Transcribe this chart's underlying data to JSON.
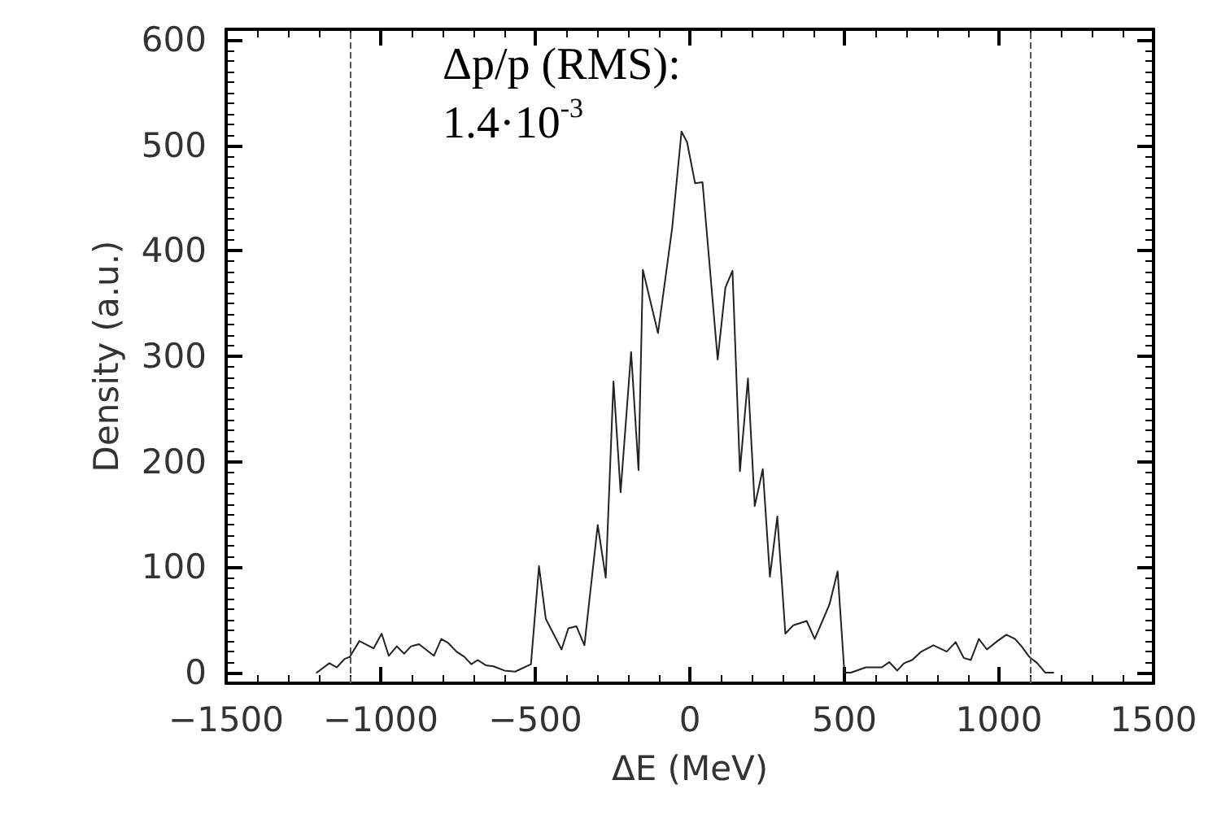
{
  "chart_data": {
    "type": "line",
    "xlabel": "ΔE (MeV)",
    "ylabel": "Density (a.u.)",
    "annotations": [
      "Δp/p (RMS):\n1.4·10$^{-3}$"
    ],
    "xlim": [
      -1500,
      1500
    ],
    "xticks": [
      -1500,
      -1000,
      -500,
      0,
      500,
      1000,
      1500
    ],
    "ylim": [
      -10,
      610
    ],
    "yticks": [
      0,
      100,
      200,
      300,
      400,
      500,
      600
    ],
    "marker": "none",
    "line_style": "solid",
    "ref_lines": [
      {
        "axis": "x",
        "value": -1100,
        "color": "#555555",
        "line_style": "dashed"
      },
      {
        "axis": "x",
        "value": 1100,
        "color": "#555555",
        "line_style": "dashed"
      }
    ],
    "series": [
      {
        "color": "#222222",
        "x": [
          -1207,
          -1166,
          -1142,
          -1117,
          -1100,
          -1069,
          -1023,
          -997,
          -974,
          -948,
          -924,
          -902,
          -876,
          -850,
          -828,
          -804,
          -781,
          -755,
          -729,
          -707,
          -686,
          -660,
          -635,
          -600,
          -565,
          -514,
          -488,
          -466,
          -415,
          -393,
          -367,
          -341,
          -298,
          -272,
          -247,
          -224,
          -190,
          -166,
          -152,
          -103,
          -57,
          -27,
          -9,
          17,
          41,
          90,
          115,
          138,
          162,
          188,
          210,
          236,
          259,
          283,
          309,
          335,
          378,
          404,
          452,
          478,
          500,
          521,
          569,
          621,
          645,
          671,
          693,
          719,
          749,
          788,
          831,
          860,
          886,
          909,
          935,
          961,
          995,
          1024,
          1052,
          1073,
          1098,
          1124,
          1150,
          1176
        ],
        "values": [
          0,
          9,
          5,
          13,
          15,
          30,
          23,
          37,
          16,
          25,
          18,
          25,
          27,
          21,
          16,
          32,
          28,
          20,
          15,
          8,
          12,
          7,
          6,
          2,
          1,
          8,
          101,
          51,
          22,
          42,
          44,
          26,
          140,
          90,
          276,
          171,
          304,
          192,
          382,
          322,
          422,
          513,
          503,
          464,
          465,
          297,
          365,
          381,
          191,
          279,
          158,
          193,
          91,
          148,
          37,
          45,
          49,
          32,
          65,
          96,
          0,
          0,
          5,
          5,
          10,
          2,
          9,
          12,
          20,
          26,
          20,
          29,
          14,
          12,
          32,
          22,
          30,
          36,
          32,
          25,
          15,
          9,
          0,
          0
        ]
      }
    ]
  }
}
